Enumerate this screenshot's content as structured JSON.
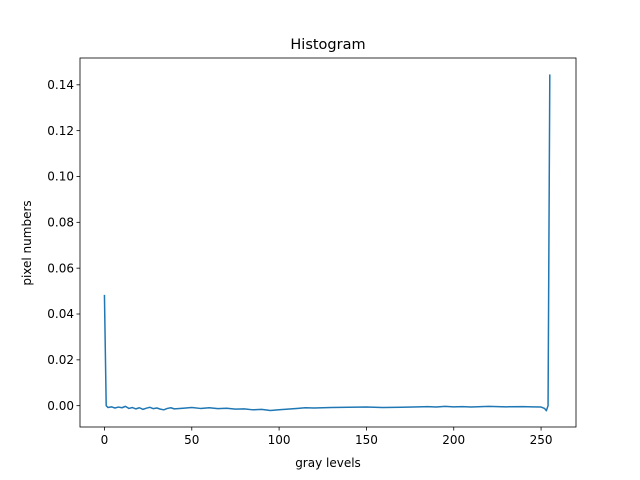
{
  "chart_data": {
    "type": "line",
    "title": "Histogram",
    "xlabel": "gray levels",
    "ylabel": "pixel numbers",
    "xlim": [
      -14,
      270
    ],
    "ylim": [
      -0.0093,
      0.1517
    ],
    "xticks": [
      0,
      50,
      100,
      150,
      200,
      250
    ],
    "xtick_labels": [
      "0",
      "50",
      "100",
      "150",
      "200",
      "250"
    ],
    "yticks": [
      0.0,
      0.02,
      0.04,
      0.06,
      0.08,
      0.1,
      0.12,
      0.14
    ],
    "ytick_labels": [
      "0.00",
      "0.02",
      "0.04",
      "0.06",
      "0.08",
      "0.10",
      "0.12",
      "0.14"
    ],
    "grid": false,
    "series": [
      {
        "color": "#1f77b4",
        "x": [
          0,
          1,
          2,
          4,
          6,
          8,
          10,
          12,
          14,
          16,
          18,
          20,
          22,
          24,
          26,
          28,
          30,
          32,
          34,
          36,
          38,
          40,
          45,
          50,
          55,
          60,
          65,
          70,
          75,
          80,
          85,
          90,
          95,
          100,
          105,
          110,
          115,
          120,
          130,
          140,
          150,
          160,
          170,
          180,
          185,
          190,
          195,
          200,
          205,
          210,
          220,
          230,
          240,
          245,
          250,
          252,
          253,
          254,
          255
        ],
        "y": [
          0.048,
          0.0,
          -0.0008,
          -0.0005,
          -0.001,
          -0.0006,
          -0.0009,
          -0.0003,
          -0.0012,
          -0.0008,
          -0.0014,
          -0.0009,
          -0.0016,
          -0.0011,
          -0.0007,
          -0.0013,
          -0.001,
          -0.0015,
          -0.0018,
          -0.0012,
          -0.0009,
          -0.0014,
          -0.0011,
          -0.0008,
          -0.0012,
          -0.0009,
          -0.0013,
          -0.0011,
          -0.0015,
          -0.0014,
          -0.0018,
          -0.0016,
          -0.0021,
          -0.0018,
          -0.0015,
          -0.0012,
          -0.0009,
          -0.001,
          -0.0008,
          -0.0007,
          -0.0006,
          -0.0008,
          -0.0007,
          -0.0005,
          -0.0004,
          -0.0006,
          -0.0003,
          -0.0005,
          -0.0004,
          -0.0006,
          -0.0003,
          -0.0005,
          -0.0004,
          -0.0005,
          -0.0006,
          -0.0012,
          -0.0022,
          0.0,
          0.1442
        ]
      }
    ]
  }
}
